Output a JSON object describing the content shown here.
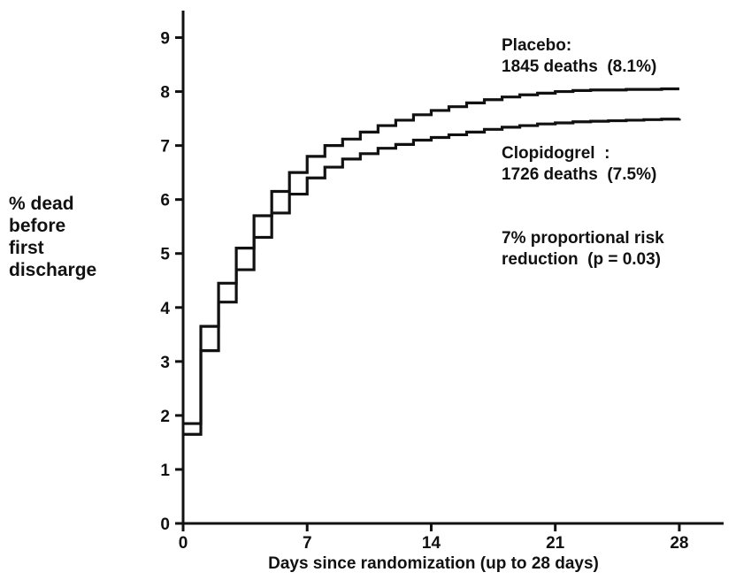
{
  "chart_data": {
    "type": "line",
    "step": true,
    "xlabel": "Days since randomization (up to 28 days)",
    "ylabel_lines": [
      "% dead",
      "before",
      "first",
      "discharge"
    ],
    "xlim": [
      0,
      30.5
    ],
    "ylim": [
      0,
      9.5
    ],
    "xticks": [
      0,
      7,
      14,
      21,
      28
    ],
    "yticks": [
      0,
      1,
      2,
      3,
      4,
      5,
      6,
      7,
      8,
      9
    ],
    "grid": false,
    "legend": "none",
    "series": [
      {
        "name": "Placebo",
        "x": [
          0,
          1,
          2,
          3,
          4,
          5,
          6,
          7,
          8,
          9,
          10,
          11,
          12,
          13,
          14,
          15,
          16,
          17,
          18,
          19,
          20,
          21,
          22,
          23,
          24,
          25,
          26,
          27,
          28
        ],
        "y": [
          1.85,
          3.65,
          4.45,
          5.1,
          5.7,
          6.15,
          6.5,
          6.8,
          7.0,
          7.12,
          7.25,
          7.37,
          7.47,
          7.57,
          7.65,
          7.72,
          7.79,
          7.85,
          7.9,
          7.94,
          7.97,
          8.0,
          8.02,
          8.03,
          8.03,
          8.04,
          8.04,
          8.05,
          8.05
        ]
      },
      {
        "name": "Clopidogrel",
        "x": [
          0,
          1,
          2,
          3,
          4,
          5,
          6,
          7,
          8,
          9,
          10,
          11,
          12,
          13,
          14,
          15,
          16,
          17,
          18,
          19,
          20,
          21,
          22,
          23,
          24,
          25,
          26,
          27,
          28
        ],
        "y": [
          1.65,
          3.2,
          4.1,
          4.7,
          5.3,
          5.75,
          6.1,
          6.4,
          6.6,
          6.75,
          6.85,
          6.95,
          7.02,
          7.1,
          7.15,
          7.2,
          7.25,
          7.3,
          7.34,
          7.37,
          7.4,
          7.42,
          7.44,
          7.45,
          7.46,
          7.47,
          7.48,
          7.49,
          7.5
        ]
      }
    ],
    "annotations": {
      "placebo": [
        "Placebo:",
        "1845 deaths  (8.1%)"
      ],
      "clopidogrel": [
        "Clopidogrel  :",
        "1726 deaths  (7.5%)"
      ],
      "risk": [
        "7% proportional risk",
        "reduction  (p = 0.03)"
      ]
    }
  }
}
